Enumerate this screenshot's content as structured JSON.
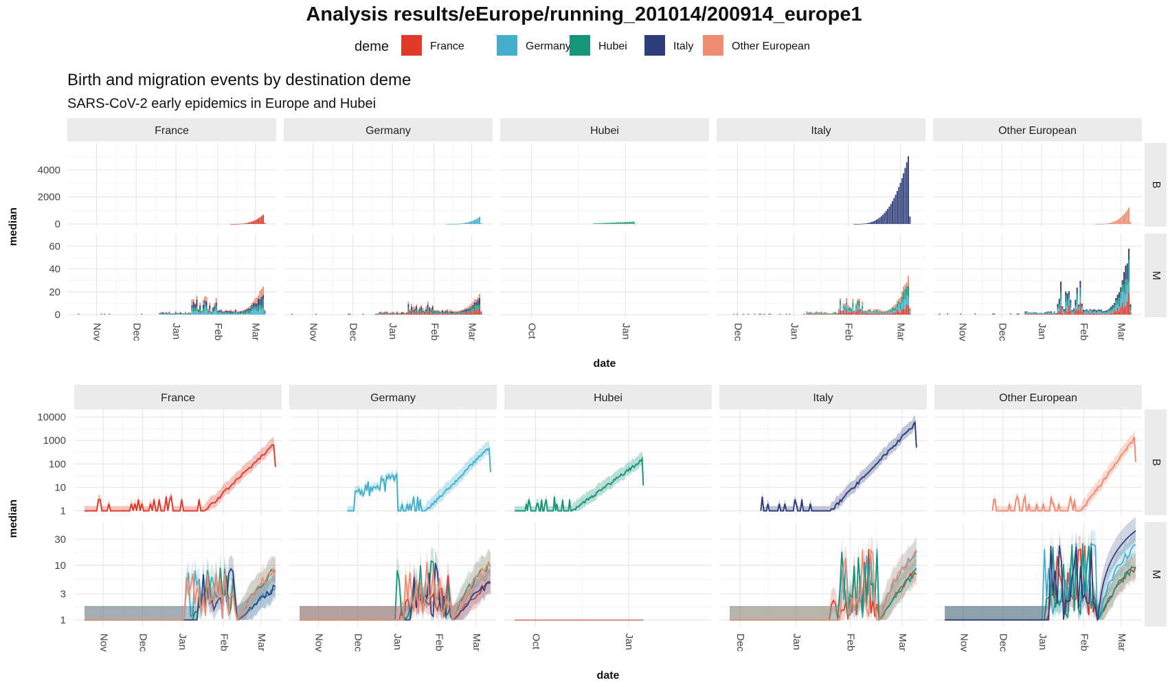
{
  "title": "Analysis  results/eEurope/running_201014/200914_europe1",
  "subtitle": "Birth and migration events by destination deme",
  "caption": "SARS-CoV-2 early epidemics in Europe and Hubei",
  "legend": {
    "title": "deme",
    "items": [
      {
        "name": "France",
        "color": "#E03A2B"
      },
      {
        "name": "Germany",
        "color": "#43AECD"
      },
      {
        "name": "Hubei",
        "color": "#16957A"
      },
      {
        "name": "Italy",
        "color": "#2E3E7A"
      },
      {
        "name": "Other European",
        "color": "#EE8C72"
      }
    ]
  },
  "facet_rows": [
    "B",
    "M"
  ],
  "chart_data": [
    {
      "type": "bar",
      "stacked": true,
      "xlabel": "date",
      "ylabel": "median",
      "y_ticks": {
        "B": [
          "0",
          "2000",
          "4000"
        ],
        "M": [
          "0",
          "20",
          "40",
          "60"
        ]
      },
      "panels": [
        {
          "deme": "France",
          "x_ticks": [
            "Nov",
            "Dec",
            "Jan",
            "Feb",
            "Mar"
          ],
          "B": {
            "peak": 800
          },
          "M": {
            "peak": 30
          }
        },
        {
          "deme": "Germany",
          "x_ticks": [
            "Nov",
            "Dec",
            "Jan",
            "Feb",
            "Mar"
          ],
          "B": {
            "peak": 600
          },
          "M": {
            "peak": 20
          }
        },
        {
          "deme": "Hubei",
          "x_ticks": [
            "Oct",
            "Jan"
          ],
          "B": {
            "peak": 180
          },
          "M": {
            "peak": 0
          }
        },
        {
          "deme": "Italy",
          "x_ticks": [
            "Dec",
            "Jan",
            "Feb",
            "Mar"
          ],
          "B": {
            "peak": 5500
          },
          "M": {
            "peak": 41
          }
        },
        {
          "deme": "Other European",
          "x_ticks": [
            "Nov",
            "Dec",
            "Jan",
            "Feb",
            "Mar"
          ],
          "B": {
            "peak": 1400
          },
          "M": {
            "peak": 64
          }
        }
      ]
    },
    {
      "type": "line",
      "y_scale": "log",
      "xlabel": "date",
      "ylabel": "median",
      "y_ticks": {
        "B": [
          "1",
          "10",
          "100",
          "1000",
          "10000"
        ],
        "M": [
          "1",
          "3",
          "10",
          "30"
        ]
      },
      "panels": [
        {
          "deme": "France",
          "x_ticks": [
            "Nov",
            "Dec",
            "Jan",
            "Feb",
            "Mar"
          ],
          "B": {
            "peak": 800,
            "end": 75
          },
          "M": {
            "peak": 15
          }
        },
        {
          "deme": "Germany",
          "x_ticks": [
            "Nov",
            "Dec",
            "Jan",
            "Feb",
            "Mar"
          ],
          "B": {
            "peak": 600,
            "end": 45
          },
          "M": {
            "peak": 20
          }
        },
        {
          "deme": "Hubei",
          "x_ticks": [
            "Oct",
            "Jan"
          ],
          "B": {
            "peak": 160,
            "end": 12
          },
          "M": {
            "peak": 1
          }
        },
        {
          "deme": "Italy",
          "x_ticks": [
            "Dec",
            "Jan",
            "Feb",
            "Mar"
          ],
          "B": {
            "peak": 6000,
            "end": 500
          },
          "M": {
            "peak": 33
          }
        },
        {
          "deme": "Other European",
          "x_ticks": [
            "Nov",
            "Dec",
            "Jan",
            "Feb",
            "Mar"
          ],
          "B": {
            "peak": 1500,
            "end": 120
          },
          "M": {
            "peak": 42
          }
        }
      ]
    }
  ]
}
